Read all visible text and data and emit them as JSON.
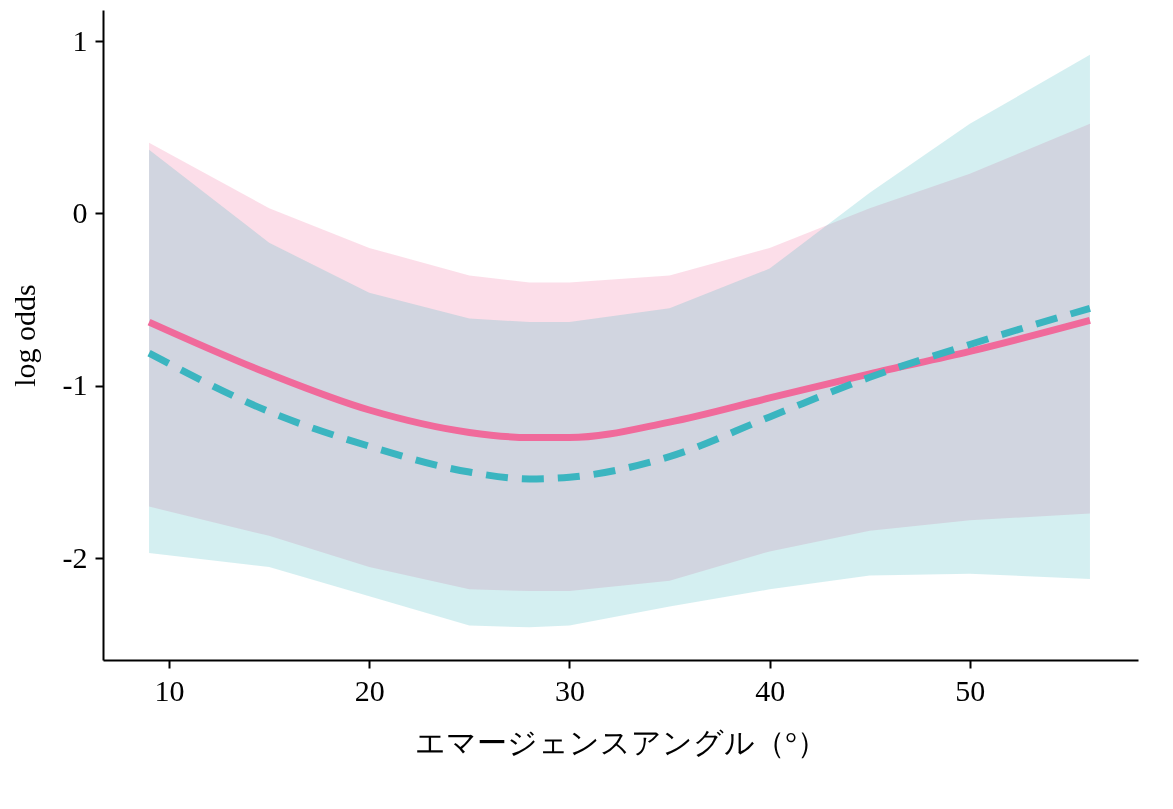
{
  "chart_data": {
    "type": "line",
    "xlabel": "エマージェンスアングル（°）",
    "ylabel": "log odds",
    "xlim": [
      6.7,
      58.4
    ],
    "ylim": [
      -2.59,
      1.18
    ],
    "xticks": [
      10,
      20,
      30,
      40,
      50
    ],
    "yticks": [
      1,
      0,
      -1,
      -2
    ],
    "grid": false,
    "marker": "none",
    "series": [
      {
        "color": "#f06a9b",
        "line_style": "solid",
        "x": [
          9,
          15,
          20,
          25,
          28,
          30,
          35,
          40,
          45,
          50,
          56
        ],
        "values": [
          -0.63,
          -0.93,
          -1.14,
          -1.27,
          -1.3,
          -1.3,
          -1.21,
          -1.07,
          -0.93,
          -0.8,
          -0.62
        ],
        "lower": [
          -1.7,
          -1.87,
          -2.05,
          -2.18,
          -2.19,
          -2.19,
          -2.13,
          -1.96,
          -1.84,
          -1.78,
          -1.74
        ],
        "upper": [
          0.41,
          0.03,
          -0.2,
          -0.36,
          -0.4,
          -0.4,
          -0.36,
          -0.2,
          0.03,
          0.23,
          0.52
        ]
      },
      {
        "color": "#3bb5c0",
        "line_style": "dashed",
        "x": [
          9,
          15,
          20,
          25,
          28,
          30,
          35,
          40,
          45,
          50,
          56
        ],
        "values": [
          -0.81,
          -1.15,
          -1.35,
          -1.5,
          -1.54,
          -1.53,
          -1.41,
          -1.18,
          -0.95,
          -0.76,
          -0.55
        ],
        "lower": [
          -1.97,
          -2.05,
          -2.22,
          -2.39,
          -2.4,
          -2.39,
          -2.28,
          -2.18,
          -2.1,
          -2.09,
          -2.12
        ],
        "upper": [
          0.37,
          -0.17,
          -0.46,
          -0.61,
          -0.63,
          -0.63,
          -0.55,
          -0.32,
          0.12,
          0.52,
          0.92
        ]
      }
    ]
  }
}
